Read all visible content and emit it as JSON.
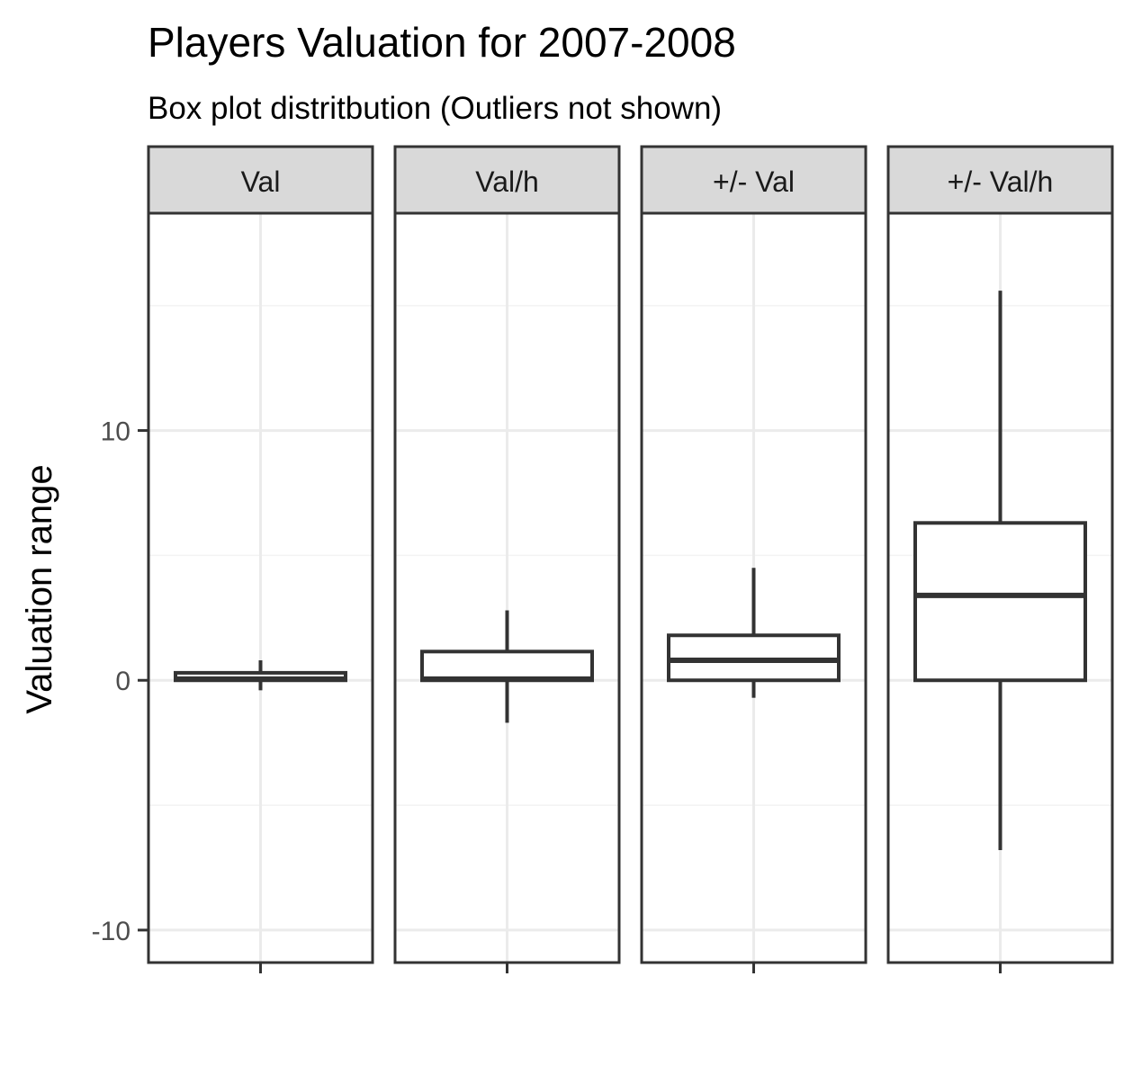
{
  "chart_data": {
    "type": "boxplot",
    "title": "Players Valuation for 2007-2008",
    "subtitle": "Box plot distritbution (Outliers not shown)",
    "xlabel": "",
    "ylabel": "Valuation range",
    "ylim": [
      -11.3,
      18.7
    ],
    "yticks": [
      -10,
      0,
      10
    ],
    "ytick_labels": [
      "-10",
      "0",
      "10"
    ],
    "grid": true,
    "facets": [
      {
        "label": "Val",
        "whisker_low": -0.4,
        "q1": 0.0,
        "median": 0.05,
        "q3": 0.3,
        "whisker_high": 0.8
      },
      {
        "label": "Val/h",
        "whisker_low": -1.7,
        "q1": 0.0,
        "median": 0.05,
        "q3": 1.15,
        "whisker_high": 2.8
      },
      {
        "label": "+/- Val",
        "whisker_low": -0.7,
        "q1": 0.0,
        "median": 0.8,
        "q3": 1.8,
        "whisker_high": 4.5
      },
      {
        "label": "+/- Val/h",
        "whisker_low": -6.8,
        "q1": 0.0,
        "median": 3.4,
        "q3": 6.3,
        "whisker_high": 15.6
      }
    ],
    "colors": {
      "panel_border": "#333333",
      "grid_major": "#ebebeb",
      "grid_minor": "#f3f3f3",
      "strip_fill": "#d9d9d9",
      "box_line": "#333333",
      "tick_text": "#4d4d4d"
    }
  }
}
